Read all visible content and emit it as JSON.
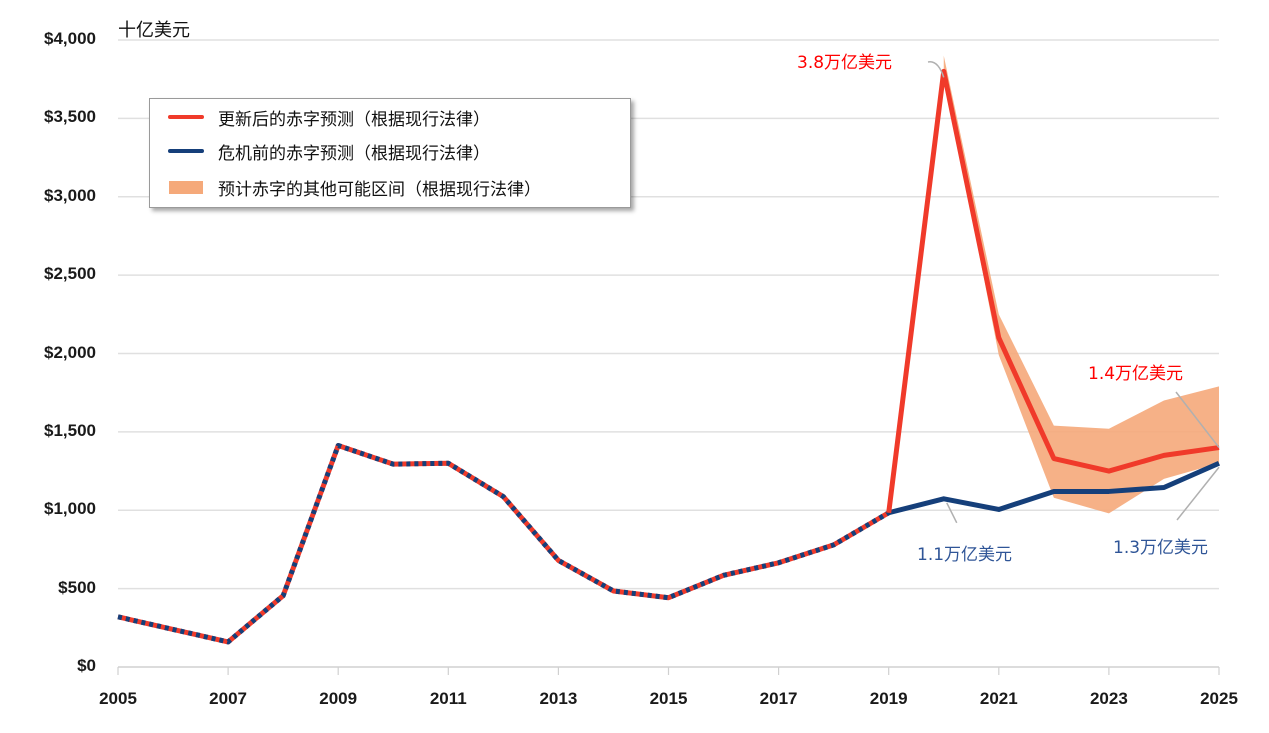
{
  "chart_data": {
    "type": "line",
    "title": "",
    "unit_label": "十亿美元",
    "xlabel": "",
    "ylabel": "十亿美元",
    "ylim": [
      0,
      4000
    ],
    "xlim": [
      2005,
      2025
    ],
    "grid": true,
    "legend_position": "upper-left (inset box)",
    "y_ticks": [
      "$0",
      "$500",
      "$1,000",
      "$1,500",
      "$2,000",
      "$2,500",
      "$3,000",
      "$3,500",
      "$4,000"
    ],
    "y_tick_values": [
      0,
      500,
      1000,
      1500,
      2000,
      2500,
      3000,
      3500,
      4000
    ],
    "x_ticks": [
      "2005",
      "2007",
      "2009",
      "2011",
      "2013",
      "2015",
      "2017",
      "2019",
      "2021",
      "2023",
      "2025"
    ],
    "x": [
      2005,
      2006,
      2007,
      2008,
      2009,
      2010,
      2011,
      2012,
      2013,
      2014,
      2015,
      2016,
      2017,
      2018,
      2019,
      2020,
      2021,
      2022,
      2023,
      2024,
      2025
    ],
    "series": [
      {
        "name": "更新后的赤字预测（根据现行法律）",
        "color": "#f03a2a",
        "style": "solid (dashed overlay with blue through 2019)",
        "values": [
          320,
          240,
          160,
          455,
          1413,
          1294,
          1300,
          1087,
          680,
          485,
          442,
          585,
          665,
          779,
          984,
          3800,
          2100,
          1330,
          1250,
          1350,
          1400
        ]
      },
      {
        "name": "危机前的赤字预测（根据现行法律）",
        "color": "#153f7a",
        "style": "solid (dashed overlay with red through 2019)",
        "values": [
          320,
          240,
          160,
          455,
          1413,
          1294,
          1300,
          1087,
          680,
          485,
          442,
          585,
          665,
          779,
          984,
          1073,
          1005,
          1120,
          1120,
          1145,
          1300
        ]
      },
      {
        "name": "预计赤字的其他可能区间（根据现行法律）",
        "type": "area-band",
        "color": "#f5a97a",
        "x": [
          2020,
          2021,
          2022,
          2023,
          2024,
          2025
        ],
        "upper": [
          3900,
          2250,
          1540,
          1520,
          1700,
          1790
        ],
        "lower": [
          3800,
          1990,
          1080,
          980,
          1200,
          1300
        ]
      }
    ],
    "annotations": [
      {
        "text": "3.8万亿美元",
        "x": 2020,
        "y": 3800,
        "color": "#ff0000"
      },
      {
        "text": "1.4万亿美元",
        "x": 2025,
        "y": 1400,
        "color": "#ff0000"
      },
      {
        "text": "1.1万亿美元",
        "x": 2020,
        "y": 1073,
        "color": "#2f5597"
      },
      {
        "text": "1.3万亿美元",
        "x": 2025,
        "y": 1300,
        "color": "#2f5597"
      }
    ]
  },
  "legend": {
    "items": [
      {
        "label": "更新后的赤字预测（根据现行法律）",
        "color": "#f03a2a",
        "kind": "line"
      },
      {
        "label": "危机前的赤字预测（根据现行法律）",
        "color": "#153f7a",
        "kind": "line"
      },
      {
        "label": "预计赤字的其他可能区间（根据现行法律）",
        "color": "#f5a97a",
        "kind": "box"
      }
    ]
  },
  "colors": {
    "updated": "#f03a2a",
    "precrisis": "#153f7a",
    "band": "#f5a97a",
    "grid": "#e0e0e0",
    "annot_red": "#ff0000",
    "annot_blue": "#2f5597",
    "leader": "#b0b0b0"
  }
}
